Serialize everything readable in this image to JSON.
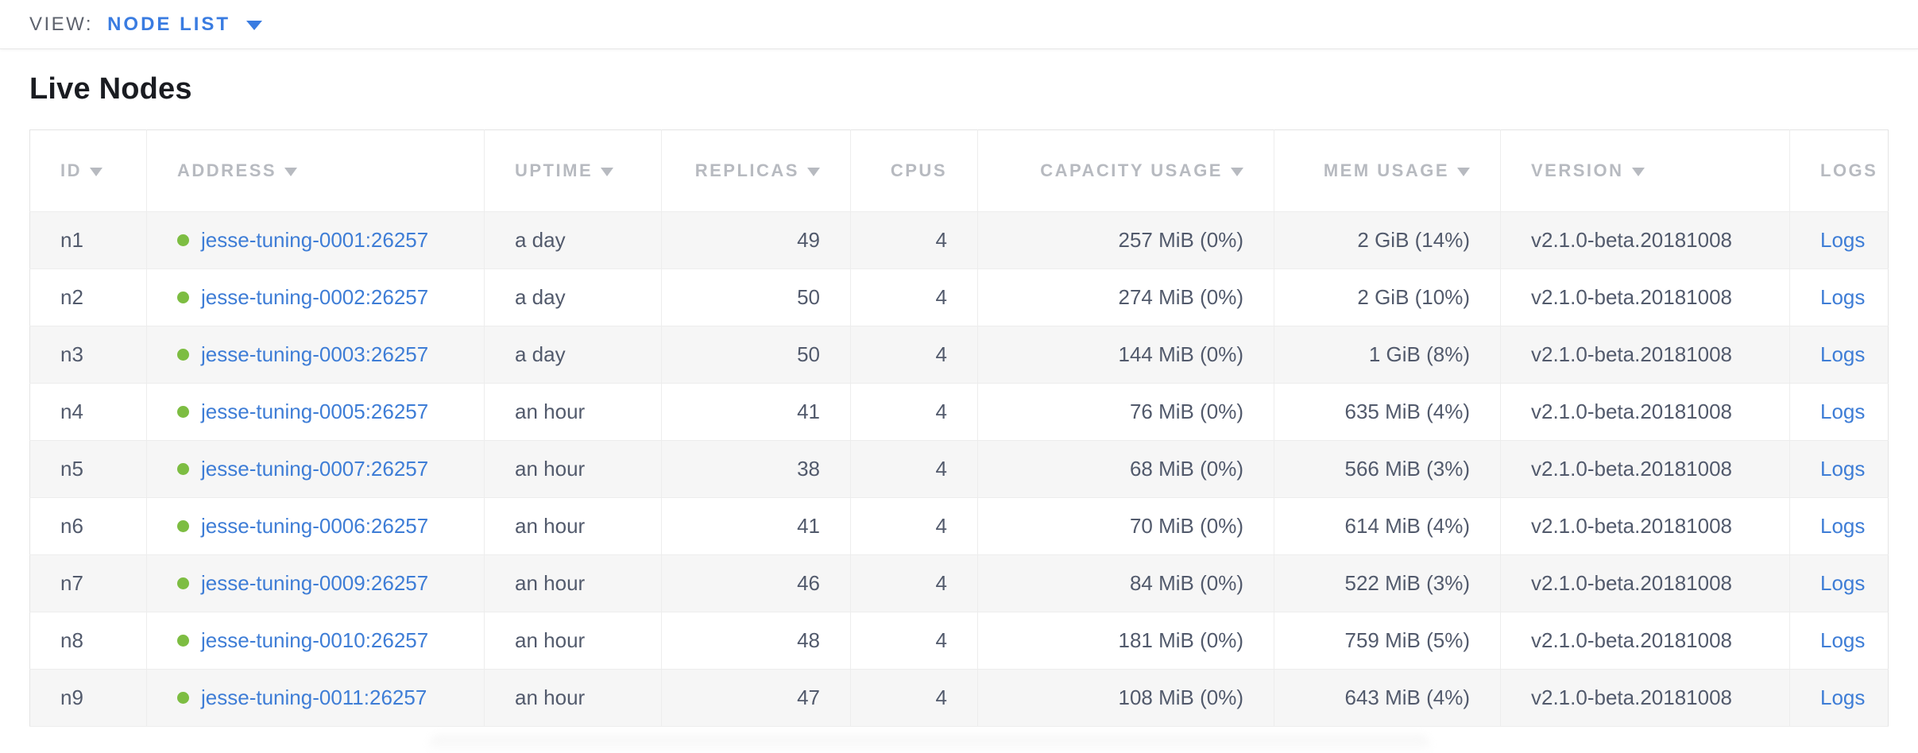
{
  "view_bar": {
    "label": "VIEW:",
    "selected": "NODE LIST"
  },
  "page": {
    "title": "Live Nodes"
  },
  "table": {
    "columns": [
      {
        "label": "ID",
        "sortable": true,
        "align": "left"
      },
      {
        "label": "ADDRESS",
        "sortable": true,
        "align": "left"
      },
      {
        "label": "UPTIME",
        "sortable": true,
        "align": "left"
      },
      {
        "label": "REPLICAS",
        "sortable": true,
        "align": "right"
      },
      {
        "label": "CPUS",
        "sortable": false,
        "align": "right"
      },
      {
        "label": "CAPACITY USAGE",
        "sortable": true,
        "align": "right"
      },
      {
        "label": "MEM USAGE",
        "sortable": true,
        "align": "right"
      },
      {
        "label": "VERSION",
        "sortable": true,
        "align": "left"
      },
      {
        "label": "LOGS",
        "sortable": false,
        "align": "center"
      }
    ],
    "rows": [
      {
        "id": "n1",
        "address": "jesse-tuning-0001:26257",
        "uptime": "a day",
        "replicas": "49",
        "cpus": "4",
        "capacity_usage": "257 MiB (0%)",
        "mem_usage": "2 GiB (14%)",
        "version": "v2.1.0-beta.20181008",
        "logs": "Logs"
      },
      {
        "id": "n2",
        "address": "jesse-tuning-0002:26257",
        "uptime": "a day",
        "replicas": "50",
        "cpus": "4",
        "capacity_usage": "274 MiB (0%)",
        "mem_usage": "2 GiB (10%)",
        "version": "v2.1.0-beta.20181008",
        "logs": "Logs"
      },
      {
        "id": "n3",
        "address": "jesse-tuning-0003:26257",
        "uptime": "a day",
        "replicas": "50",
        "cpus": "4",
        "capacity_usage": "144 MiB (0%)",
        "mem_usage": "1 GiB (8%)",
        "version": "v2.1.0-beta.20181008",
        "logs": "Logs"
      },
      {
        "id": "n4",
        "address": "jesse-tuning-0005:26257",
        "uptime": "an hour",
        "replicas": "41",
        "cpus": "4",
        "capacity_usage": "76 MiB (0%)",
        "mem_usage": "635 MiB (4%)",
        "version": "v2.1.0-beta.20181008",
        "logs": "Logs"
      },
      {
        "id": "n5",
        "address": "jesse-tuning-0007:26257",
        "uptime": "an hour",
        "replicas": "38",
        "cpus": "4",
        "capacity_usage": "68 MiB (0%)",
        "mem_usage": "566 MiB (3%)",
        "version": "v2.1.0-beta.20181008",
        "logs": "Logs"
      },
      {
        "id": "n6",
        "address": "jesse-tuning-0006:26257",
        "uptime": "an hour",
        "replicas": "41",
        "cpus": "4",
        "capacity_usage": "70 MiB (0%)",
        "mem_usage": "614 MiB (4%)",
        "version": "v2.1.0-beta.20181008",
        "logs": "Logs"
      },
      {
        "id": "n7",
        "address": "jesse-tuning-0009:26257",
        "uptime": "an hour",
        "replicas": "46",
        "cpus": "4",
        "capacity_usage": "84 MiB (0%)",
        "mem_usage": "522 MiB (3%)",
        "version": "v2.1.0-beta.20181008",
        "logs": "Logs"
      },
      {
        "id": "n8",
        "address": "jesse-tuning-0010:26257",
        "uptime": "an hour",
        "replicas": "48",
        "cpus": "4",
        "capacity_usage": "181 MiB (0%)",
        "mem_usage": "759 MiB (5%)",
        "version": "v2.1.0-beta.20181008",
        "logs": "Logs"
      },
      {
        "id": "n9",
        "address": "jesse-tuning-0011:26257",
        "uptime": "an hour",
        "replicas": "47",
        "cpus": "4",
        "capacity_usage": "108 MiB (0%)",
        "mem_usage": "643 MiB (4%)",
        "version": "v2.1.0-beta.20181008",
        "logs": "Logs"
      }
    ]
  },
  "icons": {
    "dropdown": "triangle-down",
    "sort": "triangle-down",
    "node_status": "green-dot"
  },
  "colors": {
    "accent_blue": "#3a7ce1",
    "link_blue": "#3e7dd6",
    "status_green": "#7dbd42",
    "row_stripe": "#f6f6f6",
    "header_text": "#b7bac0",
    "cell_text": "#525a6c",
    "title_text": "#1a1c21",
    "border": "#ededed"
  }
}
